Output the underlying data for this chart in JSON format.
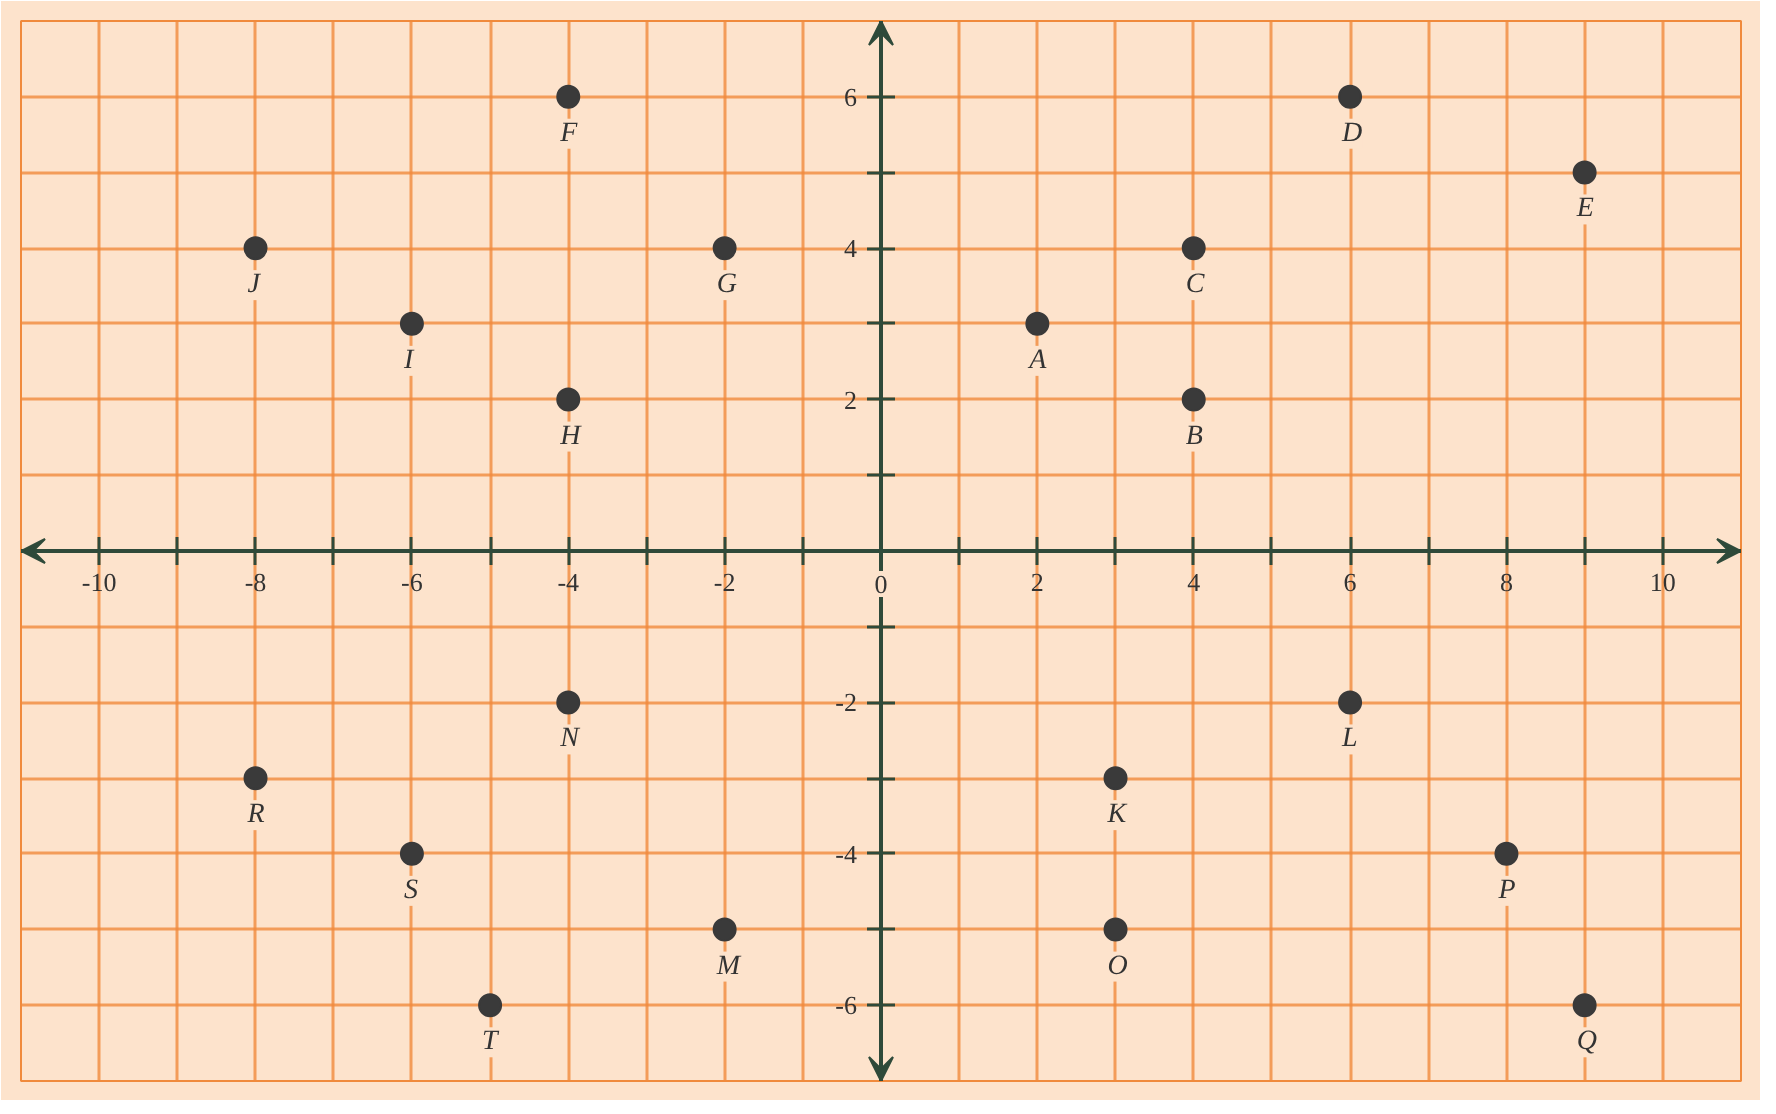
{
  "chart_data": {
    "type": "scatter",
    "series": [
      {
        "color": "#3a3a3a",
        "x": [
          2,
          4,
          4,
          6,
          9,
          -4,
          -2,
          -4,
          -6,
          -8,
          3,
          6,
          -2,
          -4,
          3,
          8,
          9,
          -8,
          -6,
          -5
        ],
        "values": [
          3,
          2,
          4,
          6,
          5,
          6,
          4,
          2,
          3,
          4,
          -3,
          -2,
          -5,
          -2,
          -5,
          -4,
          -6,
          -3,
          -4,
          -6
        ]
      }
    ],
    "annotations": [
      {
        "text": "A",
        "x": 2,
        "y": 3
      },
      {
        "text": "B",
        "x": 4,
        "y": 2
      },
      {
        "text": "C",
        "x": 4,
        "y": 4
      },
      {
        "text": "D",
        "x": 6,
        "y": 6
      },
      {
        "text": "E",
        "x": 9,
        "y": 5
      },
      {
        "text": "F",
        "x": -4,
        "y": 6
      },
      {
        "text": "G",
        "x": -2,
        "y": 4
      },
      {
        "text": "H",
        "x": -4,
        "y": 2
      },
      {
        "text": "I",
        "x": -6,
        "y": 3
      },
      {
        "text": "J",
        "x": -8,
        "y": 4
      },
      {
        "text": "K",
        "x": 3,
        "y": -3
      },
      {
        "text": "L",
        "x": 6,
        "y": -2
      },
      {
        "text": "M",
        "x": -2,
        "y": -5
      },
      {
        "text": "N",
        "x": -4,
        "y": -2
      },
      {
        "text": "O",
        "x": 3,
        "y": -5
      },
      {
        "text": "P",
        "x": 8,
        "y": -4
      },
      {
        "text": "Q",
        "x": 9,
        "y": -6
      },
      {
        "text": "R",
        "x": -8,
        "y": -3
      },
      {
        "text": "S",
        "x": -6,
        "y": -4
      },
      {
        "text": "T",
        "x": -5,
        "y": -6
      }
    ],
    "xlim": [
      -11,
      11
    ],
    "ylim": [
      -7,
      7
    ],
    "xticks": [
      -10,
      {
        "value": -9,
        "label": null
      },
      -8,
      {
        "value": -7,
        "label": null
      },
      -6,
      {
        "value": -5,
        "label": null
      },
      -4,
      {
        "value": -3,
        "label": null
      },
      -2,
      {
        "value": -1,
        "label": null
      },
      0,
      {
        "value": 1,
        "label": null
      },
      2,
      {
        "value": 3,
        "label": null
      },
      4,
      {
        "value": 5,
        "label": null
      },
      6,
      {
        "value": 7,
        "label": null
      },
      8,
      {
        "value": 9,
        "label": null
      },
      10
    ],
    "yticks": [
      -6,
      {
        "value": -5,
        "label": null
      },
      -4,
      {
        "value": -3,
        "label": null
      },
      -2,
      {
        "value": -1,
        "label": null
      },
      {
        "value": 1,
        "label": null
      },
      2,
      {
        "value": 3,
        "label": null
      },
      4,
      {
        "value": 5,
        "label": null
      },
      6
    ],
    "grid": true,
    "marker": "circle"
  }
}
